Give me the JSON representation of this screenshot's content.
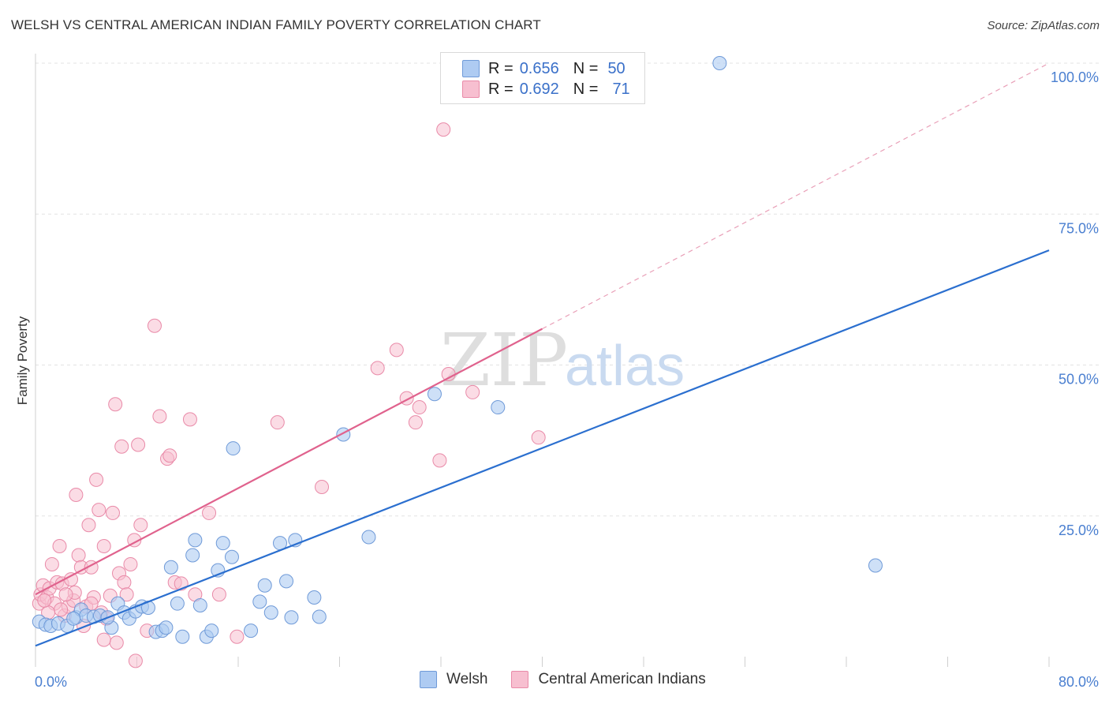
{
  "title": "WELSH VS CENTRAL AMERICAN INDIAN FAMILY POVERTY CORRELATION CHART",
  "source": "Source: ZipAtlas.com",
  "watermark": {
    "zip": "ZIP",
    "atlas": "atlas"
  },
  "legend": {
    "welsh": {
      "r_label": "R =",
      "r_value": "0.656",
      "n_label": "N =",
      "n_value": "50"
    },
    "cai": {
      "r_label": "R =",
      "r_value": "0.692",
      "n_label": "N =",
      "n_value": "71"
    }
  },
  "bottom_legend": {
    "welsh": "Welsh",
    "cai": "Central American Indians"
  },
  "colors": {
    "welsh_fill": "#aecbf2",
    "welsh_stroke": "#6f9ad8",
    "welsh_line": "#2b6fcf",
    "cai_fill": "#f7bfd0",
    "cai_stroke": "#e98aa8",
    "cai_line": "#e0628d",
    "tick_label": "#4a7fd0",
    "grid": "#e3e3e3"
  },
  "chart_data": {
    "type": "scatter",
    "title": "WELSH VS CENTRAL AMERICAN INDIAN FAMILY POVERTY CORRELATION CHART",
    "xlabel": "",
    "ylabel": "Family Poverty",
    "xlim": [
      0,
      80
    ],
    "ylim": [
      0,
      103
    ],
    "x_tick_labels": [
      "0.0%",
      "80.0%"
    ],
    "y_ticks": [
      25,
      50,
      75,
      100
    ],
    "y_tick_labels": [
      "25.0%",
      "50.0%",
      "75.0%",
      "100.0%"
    ],
    "grid": "horizontal dashed",
    "legend_position": "top-center",
    "series": [
      {
        "name": "Welsh",
        "R": 0.656,
        "N": 50,
        "trend": {
          "x": [
            0,
            80
          ],
          "y": [
            3.5,
            69
          ]
        },
        "points": [
          [
            0.3,
            7.5
          ],
          [
            0.8,
            7
          ],
          [
            1.2,
            6.8
          ],
          [
            1.8,
            7.2
          ],
          [
            2.5,
            6.8
          ],
          [
            3.2,
            8.2
          ],
          [
            3.6,
            9.5
          ],
          [
            4.0,
            8.5
          ],
          [
            4.6,
            8.3
          ],
          [
            5.1,
            8.5
          ],
          [
            6.0,
            6.5
          ],
          [
            6.5,
            10.5
          ],
          [
            7.0,
            9.0
          ],
          [
            7.4,
            8.0
          ],
          [
            7.9,
            9.2
          ],
          [
            8.4,
            10.0
          ],
          [
            8.9,
            9.8
          ],
          [
            9.5,
            5.8
          ],
          [
            10.0,
            6.0
          ],
          [
            10.3,
            6.5
          ],
          [
            10.7,
            16.5
          ],
          [
            11.2,
            10.5
          ],
          [
            11.6,
            5.0
          ],
          [
            12.4,
            18.5
          ],
          [
            12.6,
            21.0
          ],
          [
            13.0,
            10.2
          ],
          [
            13.5,
            5.0
          ],
          [
            13.9,
            6.0
          ],
          [
            14.4,
            16.0
          ],
          [
            14.8,
            20.5
          ],
          [
            15.5,
            18.2
          ],
          [
            15.6,
            36.2
          ],
          [
            17.0,
            6.0
          ],
          [
            17.7,
            10.8
          ],
          [
            18.1,
            13.5
          ],
          [
            18.6,
            9.0
          ],
          [
            19.3,
            20.5
          ],
          [
            19.8,
            14.2
          ],
          [
            20.2,
            8.2
          ],
          [
            20.5,
            21.0
          ],
          [
            22.0,
            11.5
          ],
          [
            22.4,
            8.3
          ],
          [
            24.3,
            38.5
          ],
          [
            26.3,
            21.5
          ],
          [
            31.5,
            45.2
          ],
          [
            36.5,
            43.0
          ],
          [
            54.0,
            100.0
          ],
          [
            66.3,
            16.8
          ],
          [
            3.0,
            8.0
          ],
          [
            5.7,
            8.2
          ]
        ]
      },
      {
        "name": "Central American Indians",
        "R": 0.692,
        "N": 71,
        "trend": {
          "x": [
            0,
            40
          ],
          "y": [
            12,
            56
          ]
        },
        "trend_dashed": {
          "x": [
            40,
            80
          ],
          "y": [
            56,
            100
          ]
        },
        "points": [
          [
            0.3,
            10.5
          ],
          [
            0.4,
            12.0
          ],
          [
            0.6,
            13.5
          ],
          [
            0.9,
            11.5
          ],
          [
            1.1,
            13.0
          ],
          [
            1.3,
            17.0
          ],
          [
            1.5,
            10.5
          ],
          [
            1.7,
            14.0
          ],
          [
            1.9,
            20.0
          ],
          [
            2.1,
            13.8
          ],
          [
            2.3,
            8.5
          ],
          [
            2.6,
            10.0
          ],
          [
            2.8,
            14.5
          ],
          [
            3.0,
            11.0
          ],
          [
            3.2,
            28.5
          ],
          [
            3.4,
            18.5
          ],
          [
            3.6,
            16.5
          ],
          [
            3.8,
            6.8
          ],
          [
            4.0,
            10.0
          ],
          [
            4.2,
            23.5
          ],
          [
            4.4,
            16.5
          ],
          [
            4.6,
            11.5
          ],
          [
            4.8,
            31.0
          ],
          [
            5.0,
            26.0
          ],
          [
            5.2,
            9.0
          ],
          [
            5.4,
            20.0
          ],
          [
            5.6,
            8.0
          ],
          [
            5.9,
            11.8
          ],
          [
            6.1,
            25.5
          ],
          [
            6.3,
            43.5
          ],
          [
            6.6,
            15.5
          ],
          [
            6.8,
            36.5
          ],
          [
            7.0,
            14.0
          ],
          [
            7.2,
            12.0
          ],
          [
            7.5,
            17.0
          ],
          [
            7.8,
            21.0
          ],
          [
            8.1,
            36.8
          ],
          [
            8.3,
            23.5
          ],
          [
            8.8,
            6.0
          ],
          [
            9.4,
            56.5
          ],
          [
            9.8,
            41.5
          ],
          [
            10.4,
            34.5
          ],
          [
            10.6,
            35.0
          ],
          [
            11.0,
            14.0
          ],
          [
            11.5,
            13.8
          ],
          [
            12.2,
            41.0
          ],
          [
            12.6,
            12.0
          ],
          [
            13.7,
            25.5
          ],
          [
            14.5,
            12.0
          ],
          [
            15.9,
            5.0
          ],
          [
            19.1,
            40.5
          ],
          [
            22.6,
            29.8
          ],
          [
            27.0,
            49.5
          ],
          [
            28.5,
            52.5
          ],
          [
            29.3,
            44.5
          ],
          [
            30.0,
            40.5
          ],
          [
            30.3,
            43.0
          ],
          [
            31.9,
            34.2
          ],
          [
            32.6,
            48.5
          ],
          [
            34.5,
            45.5
          ],
          [
            39.7,
            38.0
          ],
          [
            32.2,
            89.0
          ],
          [
            6.4,
            4.0
          ],
          [
            7.9,
            1.0
          ],
          [
            5.4,
            4.5
          ],
          [
            2.0,
            9.5
          ],
          [
            4.4,
            10.5
          ],
          [
            3.1,
            12.3
          ],
          [
            2.4,
            12.0
          ],
          [
            1.0,
            9.0
          ],
          [
            0.7,
            11.0
          ]
        ]
      }
    ]
  }
}
